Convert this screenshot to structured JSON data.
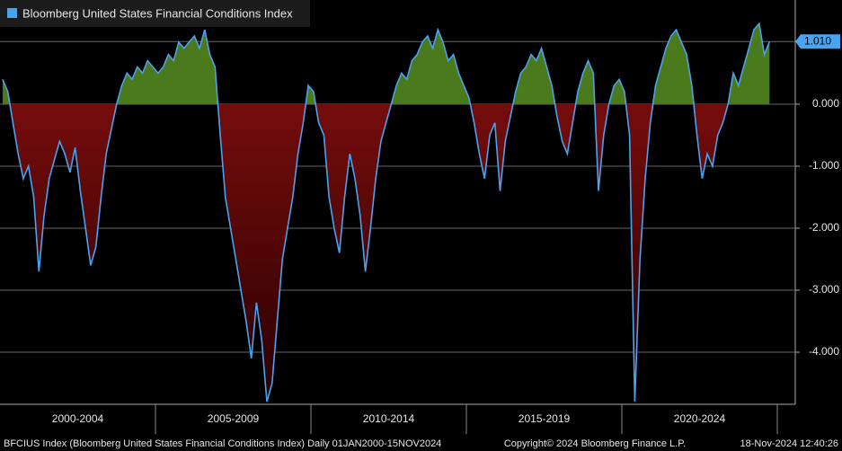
{
  "chart_data": {
    "type": "area",
    "legend": "Bloomberg United States Financial Conditions Index",
    "color": "#4aa3f0",
    "positive_color": "#4a7a1c",
    "negative_color": "#8a1010",
    "ylim": [
      -4.84,
      1.68
    ],
    "yticks": [
      {
        "value": 0,
        "label": "0.000"
      },
      {
        "value": -1,
        "label": "-1.000"
      },
      {
        "value": -2,
        "label": "-2.000"
      },
      {
        "value": -3,
        "label": "-3.000"
      },
      {
        "value": -4,
        "label": "-4.000"
      }
    ],
    "last_value": {
      "value": 1.01,
      "label": "1.010"
    },
    "grid": true,
    "periods": [
      {
        "label": "2000-2004",
        "values": [
          0.4,
          0.2,
          -0.3,
          -0.8,
          -1.2,
          -1.0,
          -1.5,
          -2.7,
          -1.8,
          -1.2,
          -0.9,
          -0.6,
          -0.8,
          -1.1,
          -0.7,
          -1.4,
          -2.0,
          -2.6,
          -2.3,
          -1.5,
          -0.8,
          -0.4,
          0.0,
          0.3,
          0.5,
          0.4,
          0.6,
          0.5,
          0.7,
          0.6
        ]
      },
      {
        "label": "2005-2009",
        "values": [
          0.5,
          0.6,
          0.8,
          0.7,
          1.0,
          0.9,
          1.0,
          1.1,
          0.9,
          1.2,
          0.8,
          0.6,
          -0.5,
          -1.5,
          -2.0,
          -2.5,
          -3.0,
          -3.5,
          -4.1,
          -3.2,
          -3.8,
          -4.8,
          -4.5,
          -3.5,
          -2.5,
          -2.0,
          -1.5,
          -0.8,
          -0.3,
          0.3
        ]
      },
      {
        "label": "2010-2014",
        "values": [
          0.2,
          -0.3,
          -0.5,
          -1.5,
          -2.0,
          -2.4,
          -1.5,
          -0.8,
          -1.2,
          -1.8,
          -2.7,
          -2.0,
          -1.2,
          -0.6,
          -0.3,
          0.0,
          0.3,
          0.5,
          0.4,
          0.7,
          0.8,
          1.0,
          1.1,
          0.9,
          1.2,
          1.0,
          0.7,
          0.8,
          0.5,
          0.3
        ]
      },
      {
        "label": "2015-2019",
        "values": [
          0.1,
          -0.3,
          -0.8,
          -1.2,
          -0.5,
          -0.3,
          -1.4,
          -0.6,
          -0.2,
          0.2,
          0.5,
          0.6,
          0.8,
          0.7,
          0.9,
          0.6,
          0.3,
          -0.2,
          -0.6,
          -0.8,
          -0.3,
          0.2,
          0.5,
          0.7,
          0.5,
          -1.4,
          -0.5,
          0.0,
          0.3,
          0.4
        ]
      },
      {
        "label": "2020-2024",
        "values": [
          0.2,
          -0.5,
          -4.8,
          -2.5,
          -1.2,
          -0.3,
          0.3,
          0.6,
          0.9,
          1.1,
          1.2,
          1.0,
          0.8,
          0.3,
          -0.5,
          -1.2,
          -0.8,
          -1.0,
          -0.5,
          -0.3,
          0.0,
          0.5,
          0.3,
          0.6,
          0.9,
          1.2,
          1.3,
          0.8,
          1.01
        ]
      }
    ],
    "footer_left": "BFCIUS Index (Bloomberg United States Financial Conditions Index)  Daily 01JAN2000-15NOV2024",
    "footer_center": "Copyright© 2024 Bloomberg Finance L.P.",
    "footer_right": "18-Nov-2024 12:40:26"
  }
}
